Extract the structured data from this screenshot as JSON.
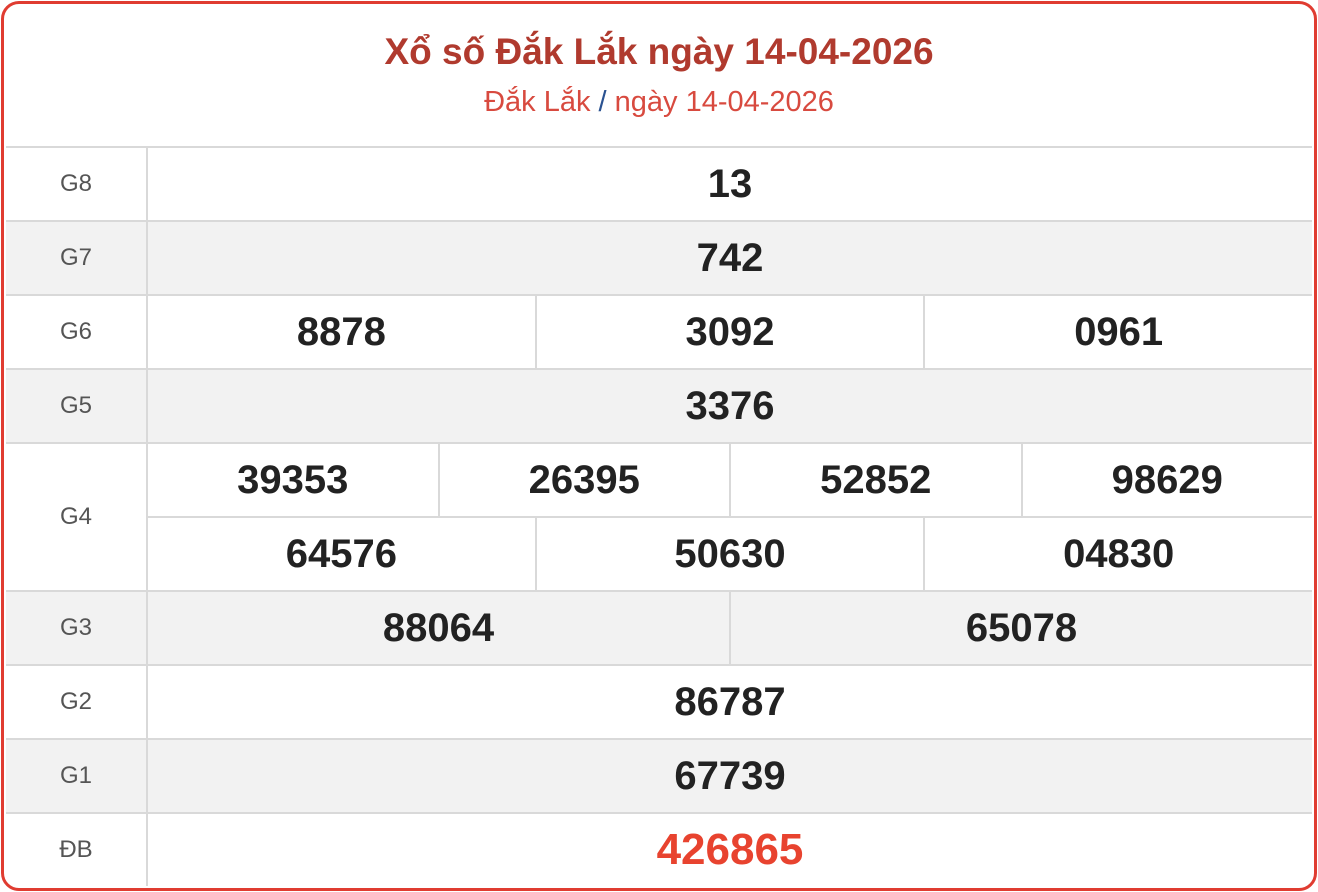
{
  "header": {
    "title": "Xổ số Đắk Lắk ngày 14-04-2026",
    "breadcrumb_province": "Đắk Lắk",
    "breadcrumb_separator": "/",
    "breadcrumb_date": "ngày 14-04-2026"
  },
  "colors": {
    "border": "#e03c31",
    "title": "#b03a2e",
    "special_prize": "#e8432f",
    "separator": "#2a5291"
  },
  "prizes": [
    {
      "label": "G8",
      "rows": [
        [
          "13"
        ]
      ]
    },
    {
      "label": "G7",
      "rows": [
        [
          "742"
        ]
      ]
    },
    {
      "label": "G6",
      "rows": [
        [
          "8878",
          "3092",
          "0961"
        ]
      ]
    },
    {
      "label": "G5",
      "rows": [
        [
          "3376"
        ]
      ]
    },
    {
      "label": "G4",
      "rows": [
        [
          "39353",
          "26395",
          "52852",
          "98629"
        ],
        [
          "64576",
          "50630",
          "04830"
        ]
      ]
    },
    {
      "label": "G3",
      "rows": [
        [
          "88064",
          "65078"
        ]
      ]
    },
    {
      "label": "G2",
      "rows": [
        [
          "86787"
        ]
      ]
    },
    {
      "label": "G1",
      "rows": [
        [
          "67739"
        ]
      ]
    },
    {
      "label": "ĐB",
      "rows": [
        [
          "426865"
        ]
      ],
      "special": true
    }
  ]
}
